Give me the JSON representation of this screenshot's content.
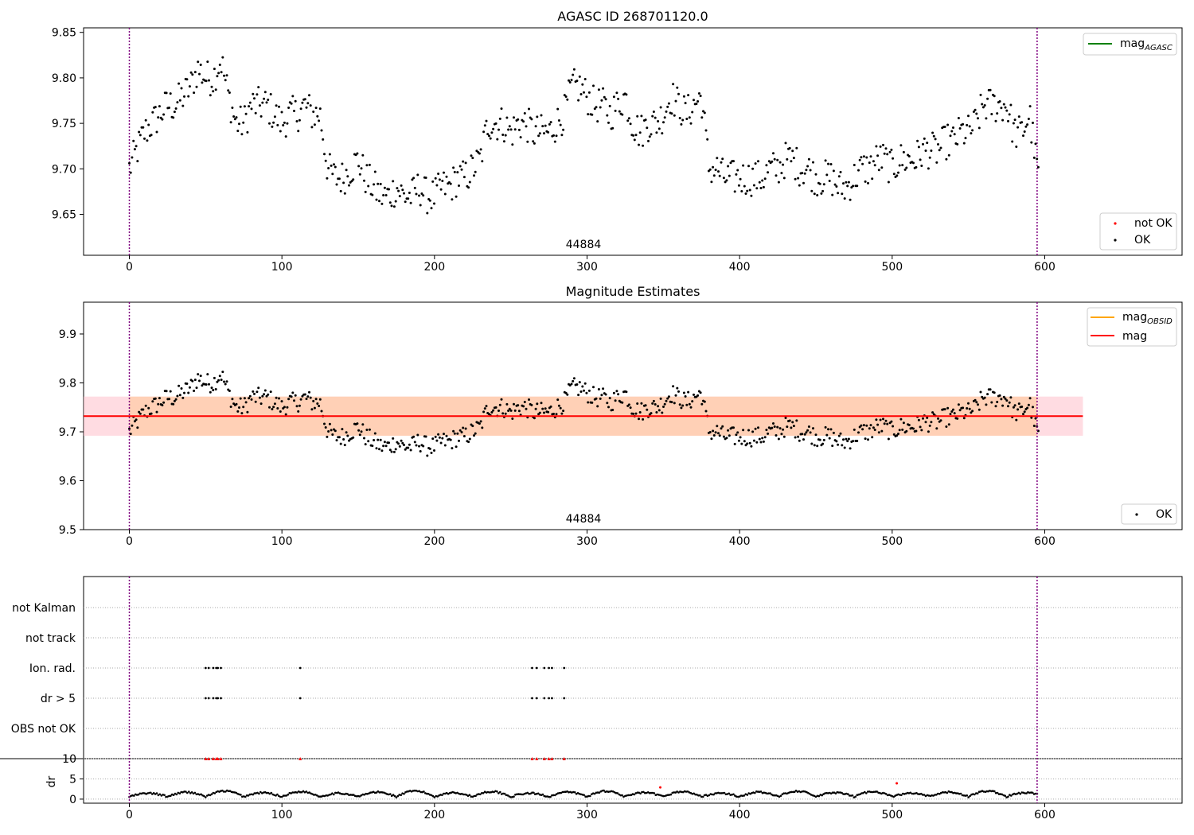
{
  "chart_data": [
    {
      "type": "scatter",
      "title": "AGASC ID 268701120.0",
      "obsid_label": "44884",
      "xlim": [
        -30,
        690
      ],
      "ylim": [
        9.605,
        9.855
      ],
      "xticks": [
        0,
        100,
        200,
        300,
        400,
        500,
        600
      ],
      "yticks": [
        9.65,
        9.7,
        9.75,
        9.8,
        9.85
      ],
      "ytick_labels": [
        "9.65",
        "9.70",
        "9.75",
        "9.80",
        "9.85"
      ],
      "obs_boundaries": [
        0,
        595
      ],
      "legend_lines": [
        {
          "name": "mag_AGASC",
          "main": "mag",
          "sub": "AGASC",
          "color": "#008000"
        }
      ],
      "legend_points": [
        {
          "name": "not OK",
          "color": "#ff0000"
        },
        {
          "name": "OK",
          "color": "#000000"
        }
      ],
      "series": [
        {
          "name": "OK",
          "color": "#000000",
          "x": [
            0,
            5,
            10,
            15,
            20,
            25,
            30,
            35,
            40,
            45,
            50,
            55,
            60,
            65,
            70,
            75,
            80,
            85,
            90,
            95,
            100,
            105,
            110,
            115,
            120,
            125,
            130,
            135,
            140,
            145,
            150,
            155,
            160,
            165,
            170,
            175,
            180,
            185,
            190,
            195,
            200,
            205,
            210,
            215,
            220,
            225,
            230,
            235,
            240,
            245,
            250,
            255,
            260,
            265,
            270,
            275,
            280,
            285,
            290,
            295,
            300,
            305,
            310,
            315,
            320,
            325,
            330,
            335,
            340,
            345,
            350,
            355,
            360,
            365,
            370,
            375,
            380,
            385,
            390,
            395,
            400,
            405,
            410,
            415,
            420,
            425,
            430,
            435,
            440,
            445,
            450,
            455,
            460,
            465,
            470,
            475,
            480,
            485,
            490,
            495,
            500,
            505,
            510,
            515,
            520,
            525,
            530,
            535,
            540,
            545,
            550,
            555,
            560,
            565,
            570,
            575,
            580,
            585,
            590,
            595
          ],
          "y": [
            9.7,
            9.72,
            9.74,
            9.75,
            9.76,
            9.77,
            9.77,
            9.78,
            9.79,
            9.81,
            9.8,
            9.8,
            9.82,
            9.78,
            9.75,
            9.75,
            9.77,
            9.77,
            9.77,
            9.76,
            9.75,
            9.76,
            9.76,
            9.77,
            9.76,
            9.76,
            9.7,
            9.69,
            9.69,
            9.7,
            9.71,
            9.69,
            9.68,
            9.67,
            9.67,
            9.68,
            9.67,
            9.67,
            9.68,
            9.67,
            9.67,
            9.68,
            9.68,
            9.69,
            9.69,
            9.7,
            9.71,
            9.75,
            9.75,
            9.75,
            9.74,
            9.75,
            9.75,
            9.74,
            9.74,
            9.74,
            9.75,
            9.76,
            9.79,
            9.79,
            9.78,
            9.77,
            9.77,
            9.76,
            9.77,
            9.78,
            9.75,
            9.74,
            9.75,
            9.75,
            9.76,
            9.78,
            9.77,
            9.76,
            9.77,
            9.78,
            9.7,
            9.7,
            9.69,
            9.69,
            9.69,
            9.69,
            9.69,
            9.69,
            9.7,
            9.7,
            9.71,
            9.71,
            9.7,
            9.7,
            9.69,
            9.69,
            9.69,
            9.68,
            9.68,
            9.69,
            9.7,
            9.7,
            9.71,
            9.71,
            9.7,
            9.71,
            9.71,
            9.71,
            9.72,
            9.72,
            9.72,
            9.73,
            9.73,
            9.74,
            9.74,
            9.75,
            9.77,
            9.77,
            9.77,
            9.77,
            9.74,
            9.74,
            9.76,
            9.7
          ]
        }
      ]
    },
    {
      "type": "scatter",
      "title": "Magnitude Estimates",
      "obsid_label": "44884",
      "xlim": [
        -30,
        690
      ],
      "ylim": [
        9.5,
        9.965
      ],
      "xticks": [
        0,
        100,
        200,
        300,
        400,
        500,
        600
      ],
      "yticks": [
        9.5,
        9.6,
        9.7,
        9.8,
        9.9
      ],
      "ytick_labels": [
        "9.5",
        "9.6",
        "9.7",
        "9.8",
        "9.9"
      ],
      "obs_boundaries": [
        0,
        595
      ],
      "mag": 9.732,
      "mag_band": [
        9.692,
        9.772
      ],
      "mag_line_range": [
        -30,
        625
      ],
      "legend_lines": [
        {
          "name": "mag_OBSID",
          "main": "mag",
          "sub": "OBSID",
          "color": "#ffa500"
        },
        {
          "name": "mag",
          "main": "mag",
          "sub": "",
          "color": "#ff0000"
        }
      ],
      "legend_points": [
        {
          "name": "OK",
          "color": "#000000"
        }
      ]
    },
    {
      "type": "scatter",
      "title": "",
      "xlim": [
        -30,
        690
      ],
      "xticks": [
        0,
        100,
        200,
        300,
        400,
        500,
        600
      ],
      "obs_boundaries": [
        0,
        595
      ],
      "flag_rows": [
        "not Kalman",
        "not track",
        "Ion. rad.",
        "dr > 5",
        "OBS not OK"
      ],
      "flag_events": {
        "Ion. rad.": [
          50,
          52,
          55,
          57,
          58,
          60,
          112,
          264,
          267,
          272,
          275,
          277,
          285
        ],
        "dr > 5": [
          50,
          52,
          55,
          57,
          58,
          60,
          112,
          264,
          267,
          272,
          275,
          277,
          285
        ]
      },
      "dr": {
        "ylabel": "dr",
        "yticks": [
          0,
          5,
          10
        ],
        "ylim": [
          -1,
          10
        ],
        "clipped_x": [
          50,
          52,
          55,
          57,
          58,
          60,
          112,
          264,
          267,
          272,
          275,
          277,
          285
        ],
        "clipped_value": 10,
        "outliers": [
          {
            "x": 348,
            "y": 2.9
          },
          {
            "x": 503,
            "y": 3.9
          }
        ]
      }
    }
  ]
}
